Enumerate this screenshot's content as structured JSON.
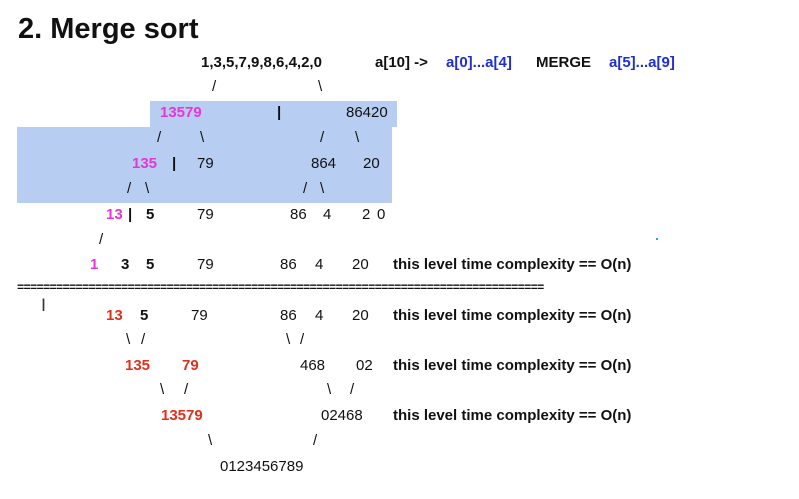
{
  "title": "2. Merge sort",
  "header": {
    "array": "1,3,5,7,9,8,6,4,2,0",
    "note_prefix": "a[10] ->",
    "left_range": "a[0]...a[4]",
    "merge_word": "MERGE",
    "right_range": "a[5]...a[9]"
  },
  "split_levels": {
    "level1": {
      "left": "13579",
      "bar": "|",
      "right": "86420"
    },
    "level2": {
      "a": "135",
      "bar": "|",
      "b": "79",
      "c": "864",
      "d": "20"
    },
    "level3": {
      "a": "13",
      "bar": "|",
      "b": "5",
      "c": "79",
      "d": "86",
      "e": "4",
      "f": "2",
      "g": "0"
    },
    "level4": {
      "a": "1",
      "b": "3",
      "c": "5",
      "d": "79",
      "e": "86",
      "f": "4",
      "g": "20"
    }
  },
  "merge_levels": {
    "level1": {
      "a": "13",
      "b": "5",
      "c": "79",
      "d": "86",
      "e": "4",
      "f": "20"
    },
    "level2": {
      "a": "135",
      "b": "79",
      "c": "468",
      "d": "02"
    },
    "level3": {
      "a": "13579",
      "b": "02468"
    },
    "result": "0123456789"
  },
  "complexity_text": "this level time complexity == O(n)",
  "separator": "=================================================================================",
  "branch_slash": "/",
  "branch_backslash": "\\",
  "cursor_glyph": "I",
  "colors": {
    "magenta": "#e835d6",
    "red": "#e0301c",
    "blue": "#1f2fd0",
    "highlight": "#b7cdf2"
  }
}
